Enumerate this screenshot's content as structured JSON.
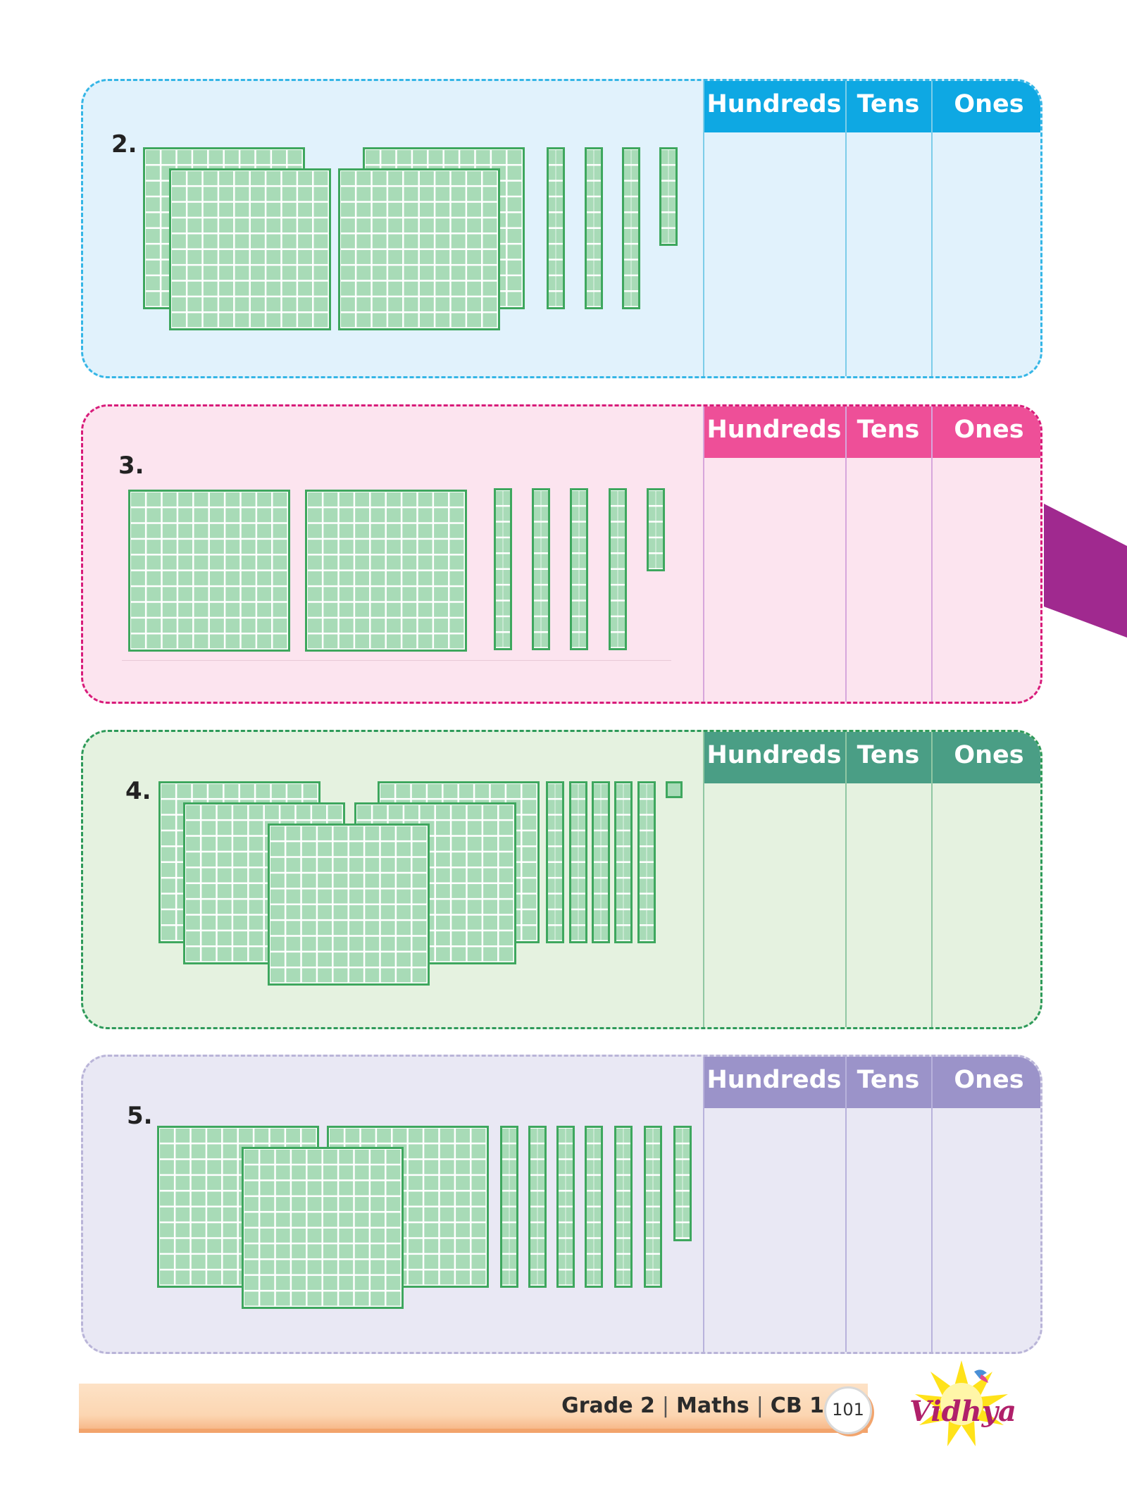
{
  "headers": {
    "hundreds": "Hundreds",
    "tens": "Tens",
    "ones": "Ones"
  },
  "questions": [
    {
      "number": "2.",
      "theme": {
        "bg": "#e1f2fc",
        "border": "#35b6e6",
        "header": "#0ea8e3",
        "line": "#7ccde9"
      }
    },
    {
      "number": "3.",
      "theme": {
        "bg": "#fce4ef",
        "border": "#d81b7a",
        "header": "#ee4f98",
        "line": "#d7a6dc"
      }
    },
    {
      "number": "4.",
      "theme": {
        "bg": "#e5f2e0",
        "border": "#2e9a5a",
        "header": "#4a9e85",
        "line": "#90c7a3"
      }
    },
    {
      "number": "5.",
      "theme": {
        "bg": "#e9e8f4",
        "border": "#b9b4d8",
        "header": "#9b93c9",
        "line": "#b8b2dc"
      }
    }
  ],
  "footer": {
    "grade": "Grade 2",
    "subject": "Maths",
    "book": "CB 1",
    "page": "101",
    "sep": "|"
  },
  "logo_text": "Vidhya",
  "colors": {
    "block_fill": "#a8dbb7",
    "block_border": "#3ea75e",
    "accent_tab": "#a0298f"
  }
}
